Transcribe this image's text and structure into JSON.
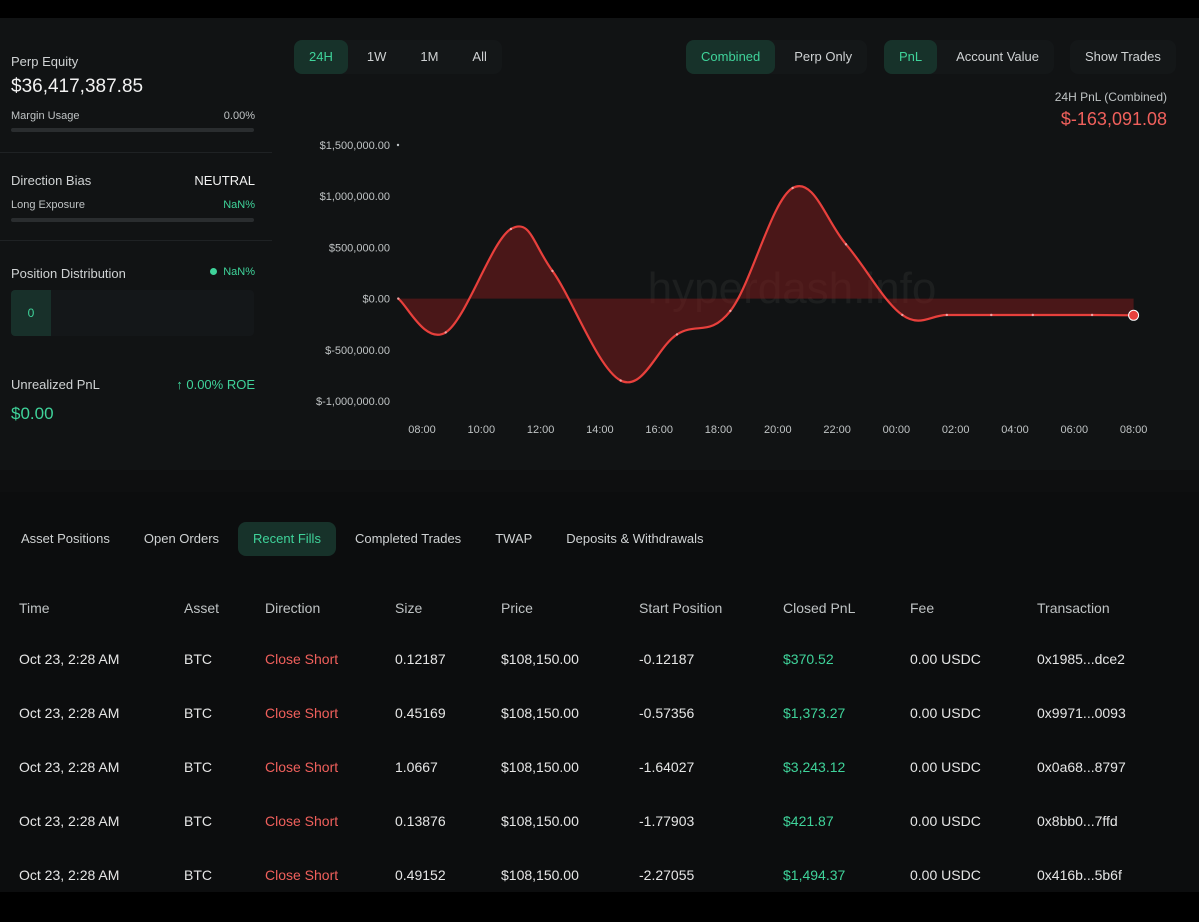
{
  "summary": {
    "perp_equity_label": "Perp Equity",
    "perp_equity_value": "$36,417,387.85",
    "margin_usage_label": "Margin Usage",
    "margin_usage_value": "0.00%",
    "direction_bias_label": "Direction Bias",
    "direction_bias_value": "NEUTRAL",
    "long_exposure_label": "Long Exposure",
    "long_exposure_value": "NaN%",
    "position_distribution_label": "Position Distribution",
    "position_distribution_value": "NaN%",
    "position_distribution_segment": "0",
    "unrealized_pnl_label": "Unrealized PnL",
    "unrealized_pnl_roe": "↑ 0.00% ROE",
    "unrealized_pnl_value": "$0.00"
  },
  "range_tabs": [
    "24H",
    "1W",
    "1M",
    "All"
  ],
  "range_active": 0,
  "mode_tabs": [
    "Combined",
    "Perp Only"
  ],
  "mode_active": 0,
  "metric_tabs": [
    "PnL",
    "Account Value"
  ],
  "metric_active": 0,
  "show_trades_label": "Show Trades",
  "pnl_header": {
    "label": "24H PnL (Combined)",
    "value": "$-163,091.08"
  },
  "watermark": "hyperdash.info",
  "colors": {
    "accent_green": "#3fd39a",
    "loss_red": "#f0605c",
    "line_red": "#e8403c"
  },
  "chart_data": {
    "type": "area",
    "title": "",
    "xlabel": "",
    "ylabel": "",
    "x_ticks": [
      "08:00",
      "10:00",
      "12:00",
      "14:00",
      "16:00",
      "18:00",
      "20:00",
      "22:00",
      "00:00",
      "02:00",
      "04:00",
      "06:00",
      "08:00"
    ],
    "y_ticks": [
      "$1,500,000.00",
      "$1,000,000.00",
      "$500,000.00",
      "$0.00",
      "$-500,000.00",
      "$-1,000,000.00"
    ],
    "ylim": [
      -1000000,
      1500000
    ],
    "series": [
      {
        "x": [
          -0.8,
          0.8,
          3.0,
          4.4,
          6.7,
          8.6,
          10.4,
          12.5,
          14.3,
          16.2,
          17.7,
          19.2,
          20.6,
          22.6,
          24.0
        ],
        "values": [
          0,
          -330000,
          680000,
          270000,
          -800000,
          -350000,
          -120000,
          1080000,
          530000,
          -160000,
          -160000,
          -160000,
          -160000,
          -160000,
          -163091
        ]
      }
    ]
  },
  "bottom_tabs": [
    "Asset Positions",
    "Open Orders",
    "Recent Fills",
    "Completed Trades",
    "TWAP",
    "Deposits & Withdrawals"
  ],
  "bottom_active": 2,
  "fills": {
    "columns": [
      "Time",
      "Asset",
      "Direction",
      "Size",
      "Price",
      "Start Position",
      "Closed PnL",
      "Fee",
      "Transaction"
    ],
    "rows": [
      [
        "Oct 23, 2:28 AM",
        "BTC",
        "Close Short",
        "0.12187",
        "$108,150.00",
        "-0.12187",
        "$370.52",
        "0.00 USDC",
        "0x1985...dce2"
      ],
      [
        "Oct 23, 2:28 AM",
        "BTC",
        "Close Short",
        "0.45169",
        "$108,150.00",
        "-0.57356",
        "$1,373.27",
        "0.00 USDC",
        "0x9971...0093"
      ],
      [
        "Oct 23, 2:28 AM",
        "BTC",
        "Close Short",
        "1.0667",
        "$108,150.00",
        "-1.64027",
        "$3,243.12",
        "0.00 USDC",
        "0x0a68...8797"
      ],
      [
        "Oct 23, 2:28 AM",
        "BTC",
        "Close Short",
        "0.13876",
        "$108,150.00",
        "-1.77903",
        "$421.87",
        "0.00 USDC",
        "0x8bb0...7ffd"
      ],
      [
        "Oct 23, 2:28 AM",
        "BTC",
        "Close Short",
        "0.49152",
        "$108,150.00",
        "-2.27055",
        "$1,494.37",
        "0.00 USDC",
        "0x416b...5b6f"
      ]
    ]
  }
}
